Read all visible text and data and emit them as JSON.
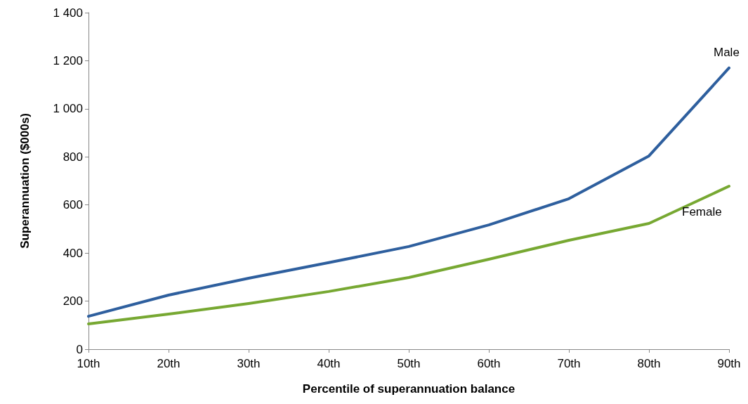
{
  "chart_data": {
    "type": "line",
    "xlabel": "Percentile of superannuation balance",
    "ylabel": "Superannuation ($000s)",
    "categories": [
      "10th",
      "20th",
      "30th",
      "40th",
      "50th",
      "60th",
      "70th",
      "80th",
      "90th"
    ],
    "series": [
      {
        "name": "Male",
        "color": "#2e5f9e",
        "values": [
          137,
          225,
          295,
          360,
          427,
          517,
          626,
          804,
          1170
        ]
      },
      {
        "name": "Female",
        "color": "#77a832",
        "values": [
          105,
          146,
          190,
          240,
          298,
          374,
          453,
          523,
          678
        ]
      }
    ],
    "ylim": [
      0,
      1400
    ],
    "yticks": [
      0,
      200,
      400,
      600,
      800,
      {
        "value": 1000,
        "label": "1 000"
      },
      {
        "value": 1200,
        "label": "1 200"
      },
      {
        "value": 1400,
        "label": "1 400"
      }
    ],
    "grid": false,
    "legend": false,
    "marker": "none",
    "line_style": "solid"
  }
}
